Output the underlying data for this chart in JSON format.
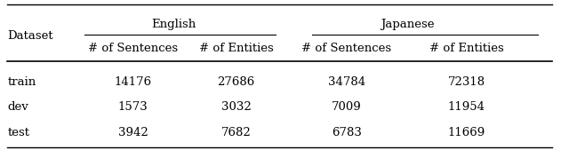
{
  "col0_header": "Dataset",
  "group_headers": [
    "English",
    "Japanese"
  ],
  "sub_headers": [
    "# of Sentences",
    "# of Entities",
    "# of Sentences",
    "# of Entities"
  ],
  "rows": [
    [
      "train",
      "14176",
      "27686",
      "34784",
      "72318"
    ],
    [
      "dev",
      "1573",
      "3032",
      "7009",
      "11954"
    ],
    [
      "test",
      "3942",
      "7682",
      "6783",
      "11669"
    ]
  ],
  "background": "#ffffff",
  "text_color": "#000000",
  "font_size": 9.5,
  "fig_width": 6.4,
  "fig_height": 1.69,
  "dpi": 100
}
